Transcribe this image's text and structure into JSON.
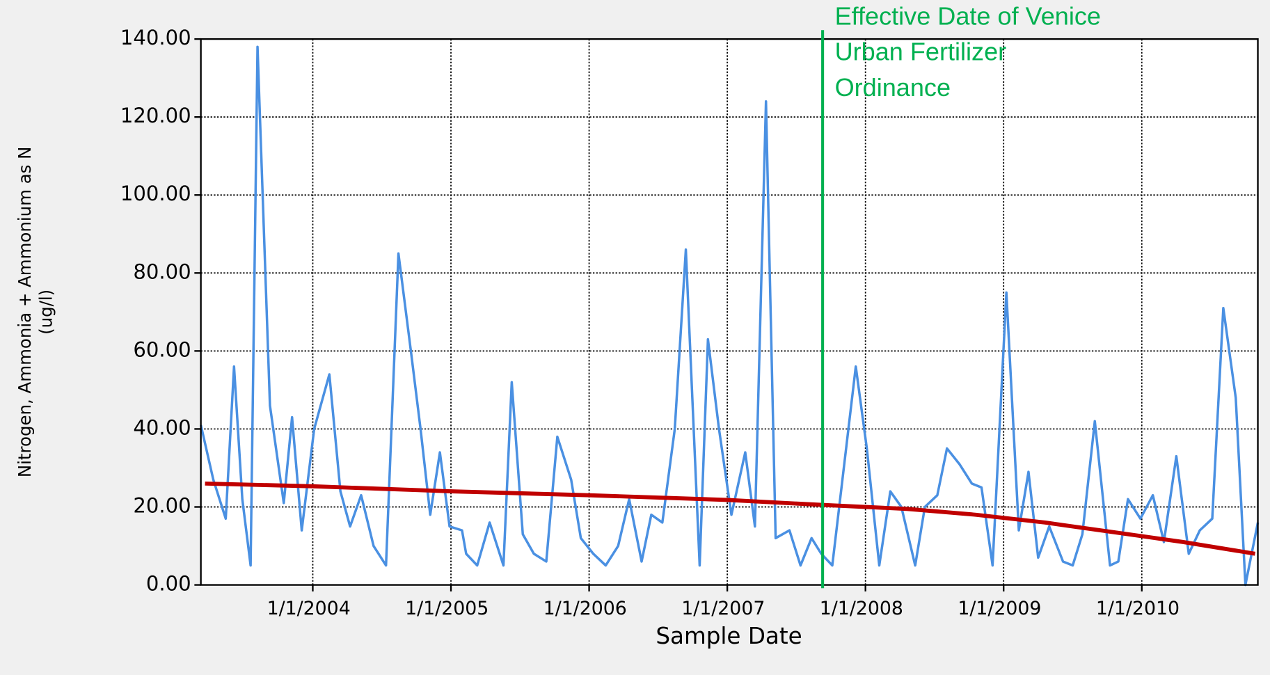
{
  "chart_data": {
    "type": "line",
    "xlabel": "Sample Date",
    "ylabel": [
      "Nitrogen, Ammonia + Ammonium as N",
      "(ug/l)"
    ],
    "xlim": [
      2003.19,
      2010.84
    ],
    "ylim": [
      0,
      140
    ],
    "xticks": [
      {
        "value": 2004,
        "label": "1/1/2004"
      },
      {
        "value": 2005,
        "label": "1/1/2005"
      },
      {
        "value": 2006,
        "label": "1/1/2006"
      },
      {
        "value": 2007,
        "label": "1/1/2007"
      },
      {
        "value": 2008,
        "label": "1/1/2008"
      },
      {
        "value": 2009,
        "label": "1/1/2009"
      },
      {
        "value": 2010,
        "label": "1/1/2010"
      }
    ],
    "yticks": [
      {
        "value": 0,
        "label": "0.00"
      },
      {
        "value": 20,
        "label": "20.00"
      },
      {
        "value": 40,
        "label": "40.00"
      },
      {
        "value": 60,
        "label": "60.00"
      },
      {
        "value": 80,
        "label": "80.00"
      },
      {
        "value": 100,
        "label": "100.00"
      },
      {
        "value": 120,
        "label": "120.00"
      },
      {
        "value": 140,
        "label": "140.00"
      }
    ],
    "grid": true,
    "series": [
      {
        "color": "#4a90e2",
        "width": 3,
        "x": [
          2003.19,
          2003.28,
          2003.37,
          2003.43,
          2003.49,
          2003.55,
          2003.6,
          2003.69,
          2003.79,
          2003.85,
          2003.92,
          2004.01,
          2004.12,
          2004.2,
          2004.27,
          2004.35,
          2004.44,
          2004.53,
          2004.62,
          2004.71,
          2004.78,
          2004.85,
          2004.92,
          2004.99,
          2005.08,
          2005.11,
          2005.19,
          2005.28,
          2005.38,
          2005.44,
          2005.52,
          2005.6,
          2005.69,
          2005.77,
          2005.87,
          2005.94,
          2006.03,
          2006.12,
          2006.21,
          2006.29,
          2006.38,
          2006.45,
          2006.53,
          2006.62,
          2006.7,
          2006.8,
          2006.86,
          2006.94,
          2007.03,
          2007.13,
          2007.2,
          2007.28,
          2007.35,
          2007.45,
          2007.53,
          2007.61,
          2007.68,
          2007.76,
          2007.84,
          2007.93,
          2008.01,
          2008.1,
          2008.18,
          2008.26,
          2008.36,
          2008.43,
          2008.52,
          2008.59,
          2008.68,
          2008.77,
          2008.84,
          2008.92,
          2009.02,
          2009.11,
          2009.18,
          2009.25,
          2009.33,
          2009.43,
          2009.5,
          2009.57,
          2009.66,
          2009.77,
          2009.83,
          2009.9,
          2009.99,
          2010.08,
          2010.16,
          2010.25,
          2010.34,
          2010.42,
          2010.51,
          2010.59,
          2010.68,
          2010.75,
          2010.84
        ],
        "values": [
          41,
          27,
          17,
          56,
          22,
          5,
          138,
          46,
          21,
          43,
          14,
          40,
          54,
          24,
          15,
          23,
          10,
          5,
          85,
          60,
          40,
          18,
          34,
          15,
          14,
          8,
          5,
          16,
          5,
          52,
          13,
          8,
          6,
          38,
          27,
          12,
          8,
          5,
          10,
          22,
          6,
          18,
          16,
          40,
          86,
          5,
          63,
          40,
          18,
          34,
          15,
          124,
          12,
          14,
          5,
          12,
          8,
          5,
          29,
          56,
          35,
          5,
          24,
          20,
          5,
          20,
          23,
          35,
          31,
          26,
          25,
          5,
          75,
          14,
          29,
          7,
          15,
          6,
          5,
          13,
          42,
          5,
          6,
          22,
          17,
          23,
          11,
          33,
          8,
          14,
          17,
          71,
          48,
          0,
          16
        ]
      },
      {
        "color": "#c00000",
        "width": 5,
        "x": [
          2003.22,
          2004,
          2005,
          2006,
          2007,
          2007.7,
          2008.3,
          2008.8,
          2009.3,
          2009.8,
          2010.3,
          2010.82
        ],
        "values": [
          26,
          25.3,
          24,
          23,
          21.8,
          20.5,
          19.5,
          18,
          16,
          13.5,
          11,
          8
        ]
      }
    ],
    "annotation": {
      "x": 2007.69,
      "color": "#00b050",
      "lines": [
        "Effective Date of Venice",
        "Urban Fertilizer",
        "Ordinance"
      ]
    }
  }
}
